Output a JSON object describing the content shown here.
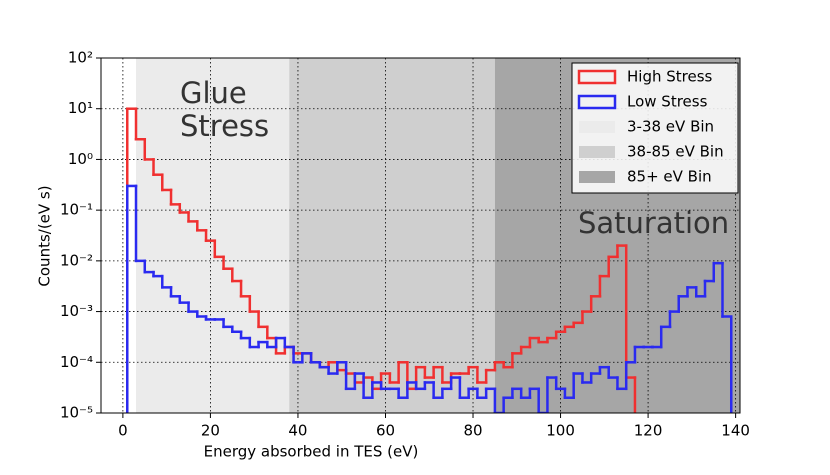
{
  "chart_data": {
    "type": "step-histogram",
    "xlabel": "Energy absorbed in TES (eV)",
    "ylabel": "Counts/(eV s)",
    "xlim": [
      -5,
      141
    ],
    "ylim": [
      1e-05,
      100
    ],
    "log_y": true,
    "grid": true,
    "legend": "upper right",
    "xticks": [
      0,
      20,
      40,
      60,
      80,
      100,
      120,
      140
    ],
    "yticks": [
      {
        "value": 1e-05,
        "label": "10⁻⁵"
      },
      {
        "value": 0.0001,
        "label": "10⁻⁴"
      },
      {
        "value": 0.001,
        "label": "10⁻³"
      },
      {
        "value": 0.01,
        "label": "10⁻²"
      },
      {
        "value": 0.1,
        "label": "10⁻¹"
      },
      {
        "value": 1,
        "label": "10⁰"
      },
      {
        "value": 10,
        "label": "10¹"
      },
      {
        "value": 100,
        "label": "10²"
      }
    ],
    "regions": [
      {
        "name": "3-38 eV Bin",
        "start": 3,
        "end": 38,
        "color": "#ebebeb"
      },
      {
        "name": "38-85 eV Bin",
        "start": 38,
        "end": 85,
        "color": "#cfcfcf"
      },
      {
        "name": "85+ eV Bin",
        "start": 85,
        "color": "#a6a6a6"
      }
    ],
    "annotations": [
      {
        "lines": [
          "Glue",
          "Stress"
        ]
      },
      {
        "lines": [
          "Saturation"
        ]
      }
    ],
    "bins": [
      1,
      3,
      5,
      7,
      9,
      11,
      13,
      15,
      17,
      19,
      21,
      23,
      25,
      27,
      29,
      31,
      33,
      35,
      37,
      39,
      41,
      43,
      45,
      47,
      49,
      51,
      53,
      55,
      57,
      59,
      61,
      63,
      65,
      67,
      69,
      71,
      73,
      75,
      77,
      79,
      81,
      83,
      85,
      87,
      89,
      91,
      93,
      95,
      97,
      99,
      101,
      103,
      105,
      107,
      109,
      111,
      113,
      115,
      117,
      119,
      121,
      123,
      125,
      127,
      129,
      131,
      133,
      135,
      137,
      139
    ],
    "series": [
      {
        "name": "High Stress",
        "color": "#f03030",
        "values": [
          10,
          2.5,
          1.0,
          0.5,
          0.25,
          0.13,
          0.09,
          0.06,
          0.04,
          0.025,
          0.012,
          0.007,
          0.004,
          0.002,
          0.001,
          0.0005,
          0.0003,
          0.00015,
          0.0002,
          0.00015,
          0.00015,
          0.0001,
          8e-05,
          0.0001,
          7e-05,
          6e-05,
          4e-05,
          5e-05,
          3e-05,
          6e-05,
          4e-05,
          0.0001,
          3e-05,
          8e-05,
          5e-05,
          8e-05,
          4e-05,
          6e-05,
          6e-05,
          8e-05,
          4e-05,
          7e-05,
          0.0001,
          8e-05,
          0.00015,
          0.0002,
          0.0003,
          0.00025,
          0.0003,
          0.0004,
          0.0005,
          0.0006,
          0.001,
          0.002,
          0.005,
          0.012,
          0.02,
          5e-05,
          0,
          0,
          0,
          0,
          0,
          0,
          0,
          0,
          0,
          0,
          0
        ]
      },
      {
        "name": "Low Stress",
        "color": "#2a2af0",
        "values": [
          0.3,
          0.01,
          0.006,
          0.005,
          0.003,
          0.002,
          0.0015,
          0.001,
          0.0008,
          0.0007,
          0.0007,
          0.0005,
          0.0004,
          0.0003,
          0.0002,
          0.00025,
          0.0002,
          0.0003,
          0.0002,
          0.0001,
          0.00015,
          0.0001,
          8e-05,
          6e-05,
          0.0001,
          3e-05,
          6e-05,
          2e-05,
          4e-05,
          3e-05,
          3e-05,
          2e-05,
          4e-05,
          3e-05,
          4e-05,
          2e-05,
          3e-05,
          5e-05,
          2e-05,
          3e-05,
          2e-05,
          3e-05,
          1e-05,
          2e-05,
          3e-05,
          2e-05,
          3e-05,
          1e-05,
          5e-05,
          3e-05,
          2e-05,
          6e-05,
          4e-05,
          6e-05,
          8e-05,
          5e-05,
          3e-05,
          0.0001,
          0.0002,
          0.0002,
          0.0002,
          0.0005,
          0.001,
          0.002,
          0.003,
          0.002,
          0.004,
          0.009,
          0.0008
        ]
      }
    ]
  }
}
